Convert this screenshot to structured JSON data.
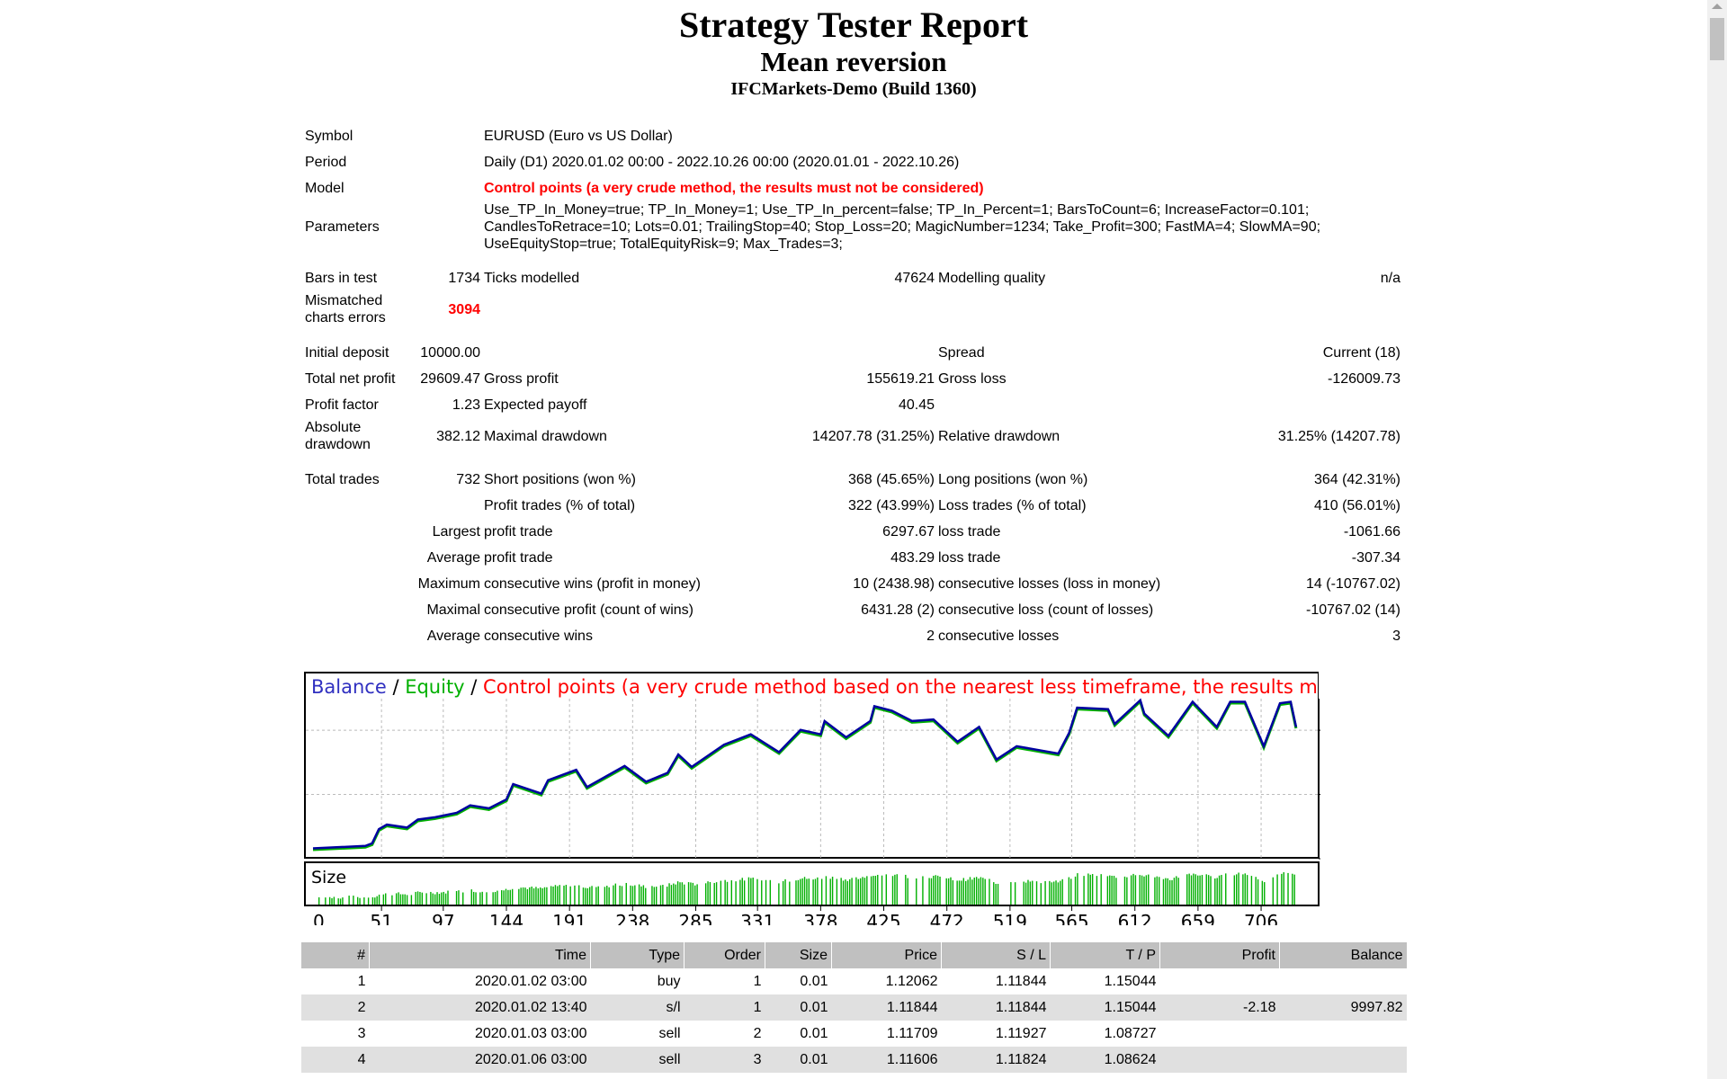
{
  "header": {
    "title": "Strategy Tester Report",
    "expert": "Mean reversion",
    "server": "IFCMarkets-Demo (Build 1360)"
  },
  "info": {
    "symbol_label": "Symbol",
    "symbol": "EURUSD (Euro vs US Dollar)",
    "period_label": "Period",
    "period": "Daily (D1) 2020.01.02 00:00 - 2022.10.26 00:00 (2020.01.01 - 2022.10.26)",
    "model_label": "Model",
    "model": "Control points (a very crude method, the results must not be considered)",
    "parameters_label": "Parameters",
    "parameters": "Use_TP_In_Money=true; TP_In_Money=1; Use_TP_In_percent=false; TP_In_Percent=1; BarsToCount=6; IncreaseFactor=0.101; CandlesToRetrace=10; Lots=0.01; TrailingStop=40; Stop_Loss=20; MagicNumber=1234; Take_Profit=300; FastMA=4; SlowMA=90; UseEquityStop=true; TotalEquityRisk=9; Max_Trades=3;",
    "bars_label": "Bars in test",
    "bars": "1734",
    "ticks_label": "Ticks modelled",
    "ticks": "47624",
    "quality_label": "Modelling quality",
    "quality": "n/a",
    "mismatch_label": "Mismatched charts errors",
    "mismatch": "3094"
  },
  "results": {
    "initial_deposit_label": "Initial deposit",
    "initial_deposit": "10000.00",
    "spread_label": "Spread",
    "spread": "Current (18)",
    "net_profit_label": "Total net profit",
    "net_profit": "29609.47",
    "gross_profit_label": "Gross profit",
    "gross_profit": "155619.21",
    "gross_loss_label": "Gross loss",
    "gross_loss": "-126009.73",
    "profit_factor_label": "Profit factor",
    "profit_factor": "1.23",
    "expected_payoff_label": "Expected payoff",
    "expected_payoff": "40.45",
    "abs_dd_label": "Absolute drawdown",
    "abs_dd": "382.12",
    "max_dd_label": "Maximal drawdown",
    "max_dd": "14207.78 (31.25%)",
    "rel_dd_label": "Relative drawdown",
    "rel_dd": "31.25% (14207.78)",
    "total_trades_label": "Total trades",
    "total_trades": "732",
    "short_label": "Short positions (won %)",
    "short": "368 (45.65%)",
    "long_label": "Long positions (won %)",
    "long": "364 (42.31%)",
    "profit_trades_label": "Profit trades (% of total)",
    "profit_trades": "322 (43.99%)",
    "loss_trades_label": "Loss trades (% of total)",
    "loss_trades": "410 (56.01%)",
    "largest_label": "Largest",
    "largest_profit_label": "profit trade",
    "largest_profit": "6297.67",
    "largest_loss_label": "loss trade",
    "largest_loss": "-1061.66",
    "average_label": "Average",
    "average_profit_label": "profit trade",
    "average_profit": "483.29",
    "average_loss_label": "loss trade",
    "average_loss": "-307.34",
    "maximum_label": "Maximum",
    "max_wins_label": "consecutive wins (profit in money)",
    "max_wins": "10 (2438.98)",
    "max_losses_label": "consecutive losses (loss in money)",
    "max_losses": "14 (-10767.02)",
    "maximal_label": "Maximal",
    "maximal_profit_label": "consecutive profit (count of wins)",
    "maximal_profit": "6431.28 (2)",
    "maximal_loss_label": "consecutive loss (count of losses)",
    "maximal_loss": "-10767.02 (14)",
    "avg_cons_label": "Average",
    "avg_wins_label": "consecutive wins",
    "avg_wins": "2",
    "avg_losses_label": "consecutive losses",
    "avg_losses": "3"
  },
  "chart_data": {
    "type": "line",
    "legend": {
      "balance": "Balance",
      "sep1": " / ",
      "equity": "Equity",
      "sep2": " / ",
      "note": "Control points (a very crude method based on the nearest less timeframe, the results must not be considered)"
    },
    "colors": {
      "balance": "#0000a0",
      "equity": "#00b000",
      "note": "#ff0000",
      "size": "#00b000"
    },
    "size_label": "Size",
    "x_ticks": [
      "0",
      "51",
      "97",
      "144",
      "191",
      "238",
      "285",
      "331",
      "378",
      "425",
      "472",
      "519",
      "565",
      "612",
      "659",
      "706"
    ],
    "y_ticks": [
      "38822",
      "23333",
      "7843"
    ],
    "ylim": [
      7843,
      52500
    ],
    "xlim": [
      0,
      732
    ],
    "grid": true,
    "balance": [
      [
        0,
        10342
      ],
      [
        39,
        10912
      ],
      [
        44,
        11555
      ],
      [
        49,
        14981
      ],
      [
        55,
        16052
      ],
      [
        70,
        15338
      ],
      [
        78,
        17265
      ],
      [
        91,
        17836
      ],
      [
        107,
        18907
      ],
      [
        117,
        20692
      ],
      [
        131,
        19978
      ],
      [
        144,
        22119
      ],
      [
        149,
        25830
      ],
      [
        170,
        23547
      ],
      [
        175,
        26759
      ],
      [
        196,
        29257
      ],
      [
        204,
        25116
      ],
      [
        232,
        30185
      ],
      [
        248,
        26402
      ],
      [
        264,
        28543
      ],
      [
        272,
        32968
      ],
      [
        282,
        29970
      ],
      [
        306,
        35324
      ],
      [
        326,
        37822
      ],
      [
        347,
        33540
      ],
      [
        363,
        38893
      ],
      [
        378,
        37822
      ],
      [
        381,
        41034
      ],
      [
        397,
        37108
      ],
      [
        415,
        41034
      ],
      [
        418,
        44603
      ],
      [
        431,
        43532
      ],
      [
        446,
        41034
      ],
      [
        462,
        41391
      ],
      [
        480,
        36037
      ],
      [
        496,
        39607
      ],
      [
        509,
        31755
      ],
      [
        524,
        34967
      ],
      [
        555,
        33183
      ],
      [
        563,
        38179
      ],
      [
        569,
        44246
      ],
      [
        592,
        43889
      ],
      [
        597,
        40320
      ],
      [
        616,
        46030
      ],
      [
        619,
        42818
      ],
      [
        637,
        37465
      ],
      [
        655,
        45673
      ],
      [
        673,
        39607
      ],
      [
        683,
        45673
      ],
      [
        694,
        45673
      ],
      [
        708,
        34967
      ],
      [
        720,
        45316
      ],
      [
        728,
        45673
      ],
      [
        732,
        39607
      ]
    ]
  },
  "trades": {
    "headers": [
      "#",
      "Time",
      "Type",
      "Order",
      "Size",
      "Price",
      "S / L",
      "T / P",
      "Profit",
      "Balance"
    ],
    "rows": [
      [
        "1",
        "2020.01.02 03:00",
        "buy",
        "1",
        "0.01",
        "1.12062",
        "1.11844",
        "1.15044",
        "",
        ""
      ],
      [
        "2",
        "2020.01.02 13:40",
        "s/l",
        "1",
        "0.01",
        "1.11844",
        "1.11844",
        "1.15044",
        "-2.18",
        "9997.82"
      ],
      [
        "3",
        "2020.01.03 03:00",
        "sell",
        "2",
        "0.01",
        "1.11709",
        "1.11927",
        "1.08727",
        "",
        ""
      ],
      [
        "4",
        "2020.01.06 03:00",
        "sell",
        "3",
        "0.01",
        "1.11606",
        "1.11824",
        "1.08624",
        "",
        ""
      ]
    ]
  }
}
